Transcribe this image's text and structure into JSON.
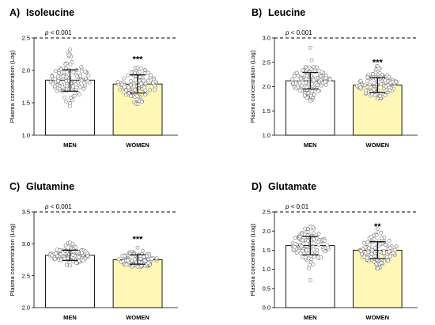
{
  "chart_data": [
    {
      "type": "bar",
      "panel_label": "A)",
      "title": "Isoleucine",
      "ylabel": "Plasma concentration (Log)",
      "categories": [
        "MEN",
        "WOMEN"
      ],
      "ylim": [
        1.0,
        2.5
      ],
      "yticks": [
        "1.0",
        "1.5",
        "2.0",
        "2.5"
      ],
      "values": [
        1.85,
        1.79
      ],
      "error_bars": [
        [
          1.68,
          2.01
        ],
        [
          1.65,
          1.93
        ]
      ],
      "reference_line": 2.5,
      "pvalue_label": "p < 0.001",
      "significance": [
        "",
        "***"
      ],
      "points_range": [
        [
          1.45,
          2.32
        ],
        [
          1.48,
          2.04
        ]
      ],
      "bar_colors": [
        "#ffffff",
        "#fff7b5"
      ]
    },
    {
      "type": "bar",
      "panel_label": "B)",
      "title": "Leucine",
      "ylabel": "Plasma concentration (Log)",
      "categories": [
        "MEN",
        "WOMEN"
      ],
      "ylim": [
        1.0,
        3.0
      ],
      "yticks": [
        "1.0",
        "1.5",
        "2.0",
        "2.5",
        "3.0"
      ],
      "values": [
        2.12,
        2.03
      ],
      "error_bars": [
        [
          1.95,
          2.29
        ],
        [
          1.88,
          2.18
        ]
      ],
      "reference_line": 3.0,
      "pvalue_label": "p < 0.001",
      "significance": [
        "",
        "***"
      ],
      "points_range": [
        [
          1.7,
          2.8
        ],
        [
          1.75,
          2.42
        ]
      ],
      "bar_colors": [
        "#ffffff",
        "#fff7b5"
      ]
    },
    {
      "type": "bar",
      "panel_label": "C)",
      "title": "Glutamine",
      "ylabel": "Plasma concentration (Log)",
      "categories": [
        "MEN",
        "WOMEN"
      ],
      "ylim": [
        2.0,
        3.5
      ],
      "yticks": [
        "2.0",
        "2.5",
        "3.0",
        "3.5"
      ],
      "values": [
        2.82,
        2.75
      ],
      "error_bars": [
        [
          2.74,
          2.9
        ],
        [
          2.68,
          2.83
        ]
      ],
      "reference_line": 3.5,
      "pvalue_label": "p < 0.001",
      "significance": [
        "",
        "***"
      ],
      "points_range": [
        [
          2.66,
          3.02
        ],
        [
          2.64,
          2.94
        ]
      ],
      "bar_colors": [
        "#ffffff",
        "#fff7b5"
      ]
    },
    {
      "type": "bar",
      "panel_label": "D)",
      "title": "Glutamate",
      "ylabel": "Plasma concentration (Log)",
      "categories": [
        "MEN",
        "WOMEN"
      ],
      "ylim": [
        0.0,
        2.5
      ],
      "yticks": [
        "0.0",
        "0.5",
        "1.0",
        "1.5",
        "2.0",
        "2.5"
      ],
      "values": [
        1.62,
        1.5
      ],
      "error_bars": [
        [
          1.38,
          1.86
        ],
        [
          1.28,
          1.72
        ]
      ],
      "reference_line": 2.5,
      "pvalue_label": "p < 0.01",
      "significance": [
        "",
        "**"
      ],
      "points_range": [
        [
          0.72,
          2.12
        ],
        [
          1.02,
          2.05
        ]
      ],
      "bar_colors": [
        "#ffffff",
        "#fff7b5"
      ]
    }
  ]
}
